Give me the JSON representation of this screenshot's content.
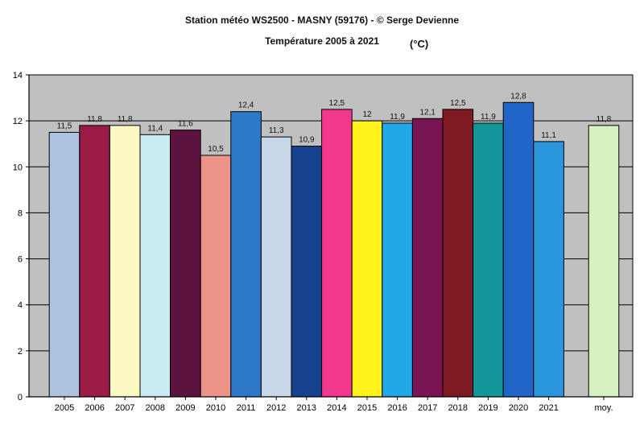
{
  "chart_data": {
    "type": "bar",
    "title": "Station météo WS2500 - MASNY (59176) - © Serge Devienne",
    "subtitle": "Température 2005 à 2021",
    "unit": "(°C)",
    "categories": [
      "2005",
      "2006",
      "2007",
      "2008",
      "2009",
      "2010",
      "2011",
      "2012",
      "2013",
      "2014",
      "2015",
      "2016",
      "2017",
      "2018",
      "2019",
      "2020",
      "2021",
      "moy."
    ],
    "values": [
      11.5,
      11.8,
      11.8,
      11.4,
      11.6,
      10.5,
      12.4,
      11.3,
      10.9,
      12.5,
      12,
      11.9,
      12.1,
      12.5,
      11.9,
      12.8,
      11.1,
      11.8
    ],
    "value_labels": [
      "11,5",
      "11,8",
      "11,8",
      "11,4",
      "11,6",
      "10,5",
      "12,4",
      "11,3",
      "10,9",
      "12,5",
      "12",
      "11,9",
      "12,1",
      "12,5",
      "11,9",
      "12,8",
      "11,1",
      "11,8"
    ],
    "colors": [
      "#aec3e0",
      "#9b1b47",
      "#fbf8c4",
      "#c8ecf0",
      "#5c1340",
      "#ec9488",
      "#2e78c8",
      "#c9d6e7",
      "#17428e",
      "#f3398d",
      "#fdf21b",
      "#22a8e6",
      "#7a1553",
      "#7d1a22",
      "#149599",
      "#2166c6",
      "#2a96db",
      "#d6f0c0"
    ],
    "yticks": [
      "0",
      "2",
      "4",
      "6",
      "8",
      "10",
      "12",
      "14"
    ],
    "ylim": [
      0,
      14
    ],
    "grid": true,
    "plot_background": "#c0c0c0"
  }
}
